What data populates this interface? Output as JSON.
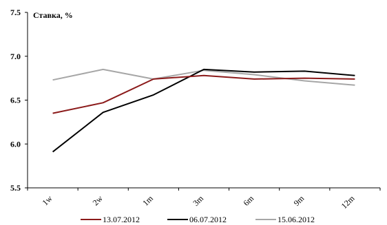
{
  "chart_data": {
    "type": "line",
    "ylabel": "Ставка, %",
    "xlabel": "",
    "categories": [
      "1w",
      "2w",
      "1m",
      "3m",
      "6m",
      "9m",
      "12m"
    ],
    "ylim": [
      5.5,
      7.5
    ],
    "yticks": [
      "5.5",
      "6.0",
      "6.5",
      "7.0",
      "7.5"
    ],
    "grid": false,
    "legend_position": "bottom",
    "series": [
      {
        "name": "13.07.2012",
        "color": "#8b1a1a",
        "values": [
          6.35,
          6.47,
          6.74,
          6.78,
          6.74,
          6.75,
          6.74
        ]
      },
      {
        "name": "06.07.2012",
        "color": "#000000",
        "values": [
          5.91,
          6.36,
          6.56,
          6.85,
          6.82,
          6.83,
          6.78
        ]
      },
      {
        "name": "15.06.2012",
        "color": "#a6a6a6",
        "values": [
          6.73,
          6.85,
          6.74,
          6.84,
          6.79,
          6.72,
          6.67
        ]
      }
    ]
  }
}
